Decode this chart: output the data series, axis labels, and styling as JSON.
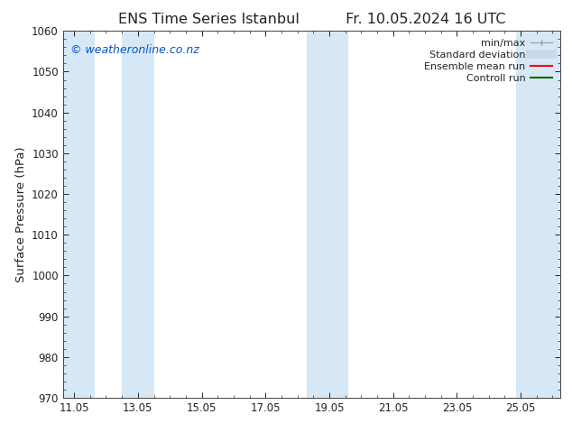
{
  "title": "ENS Time Series Istanbul",
  "title2": "Fr. 10.05.2024 16 UTC",
  "ylabel": "Surface Pressure (hPa)",
  "ylim": [
    970,
    1060
  ],
  "yticks": [
    970,
    980,
    990,
    1000,
    1010,
    1020,
    1030,
    1040,
    1050,
    1060
  ],
  "xlim_start": 10.7,
  "xlim_end": 26.3,
  "xtick_labels": [
    "11.05",
    "13.05",
    "15.05",
    "17.05",
    "19.05",
    "21.05",
    "23.05",
    "25.05"
  ],
  "xtick_positions": [
    11.05,
    13.05,
    15.05,
    17.05,
    19.05,
    21.05,
    23.05,
    25.05
  ],
  "background_color": "#ffffff",
  "plot_bg_color": "#ffffff",
  "watermark": "© weatheronline.co.nz",
  "watermark_color": "#0055cc",
  "shaded_bands": [
    {
      "x_start": 10.7,
      "x_end": 11.7,
      "color": "#d6e8f5"
    },
    {
      "x_start": 12.55,
      "x_end": 13.55,
      "color": "#d6e8f5"
    },
    {
      "x_start": 18.35,
      "x_end": 19.65,
      "color": "#d6e8f5"
    },
    {
      "x_start": 24.9,
      "x_end": 26.3,
      "color": "#d6e8f5"
    }
  ],
  "legend_labels": [
    "min/max",
    "Standard deviation",
    "Ensemble mean run",
    "Controll run"
  ],
  "legend_colors": [
    "#999999",
    "#c8d8e8",
    "#ff0000",
    "#006600"
  ],
  "legend_lws": [
    1.0,
    7,
    1.5,
    1.5
  ],
  "font_color": "#222222",
  "tick_color": "#222222",
  "spine_color": "#444444",
  "title_fontsize": 11.5,
  "label_fontsize": 9.5,
  "tick_fontsize": 8.5,
  "legend_fontsize": 8.0
}
